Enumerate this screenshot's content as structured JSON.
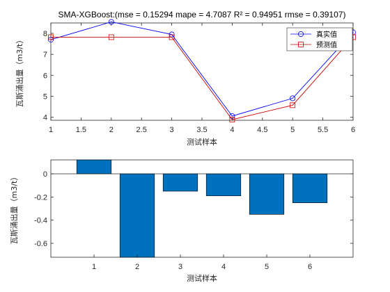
{
  "chart_data": [
    {
      "type": "line",
      "title": "SMA-XGBoost:(mse = 0.15294 mape = 4.7087  R² = 0.94951 rmse = 0.39107)",
      "xlabel": "测试样本",
      "ylabel": "瓦斯涌出量（m3/t）",
      "x": [
        1,
        2,
        3,
        4,
        5,
        6
      ],
      "xlim": [
        1,
        6
      ],
      "ylim": [
        3.85,
        8.5
      ],
      "xticks": [
        "1",
        "1.5",
        "2",
        "2.5",
        "3",
        "3.5",
        "4",
        "4.5",
        "5",
        "5.5",
        "6"
      ],
      "yticks": [
        "4",
        "5",
        "6",
        "7",
        "8"
      ],
      "grid": false,
      "legend_position": "top-right",
      "series": [
        {
          "name": "真实值",
          "values": [
            7.7,
            8.55,
            7.95,
            4.05,
            4.9,
            8.05
          ],
          "color": "#0000ff",
          "marker": "circle"
        },
        {
          "name": "预测值",
          "values": [
            7.82,
            7.82,
            7.82,
            3.88,
            4.57,
            7.82
          ],
          "color": "#cc0000",
          "marker": "square"
        }
      ]
    },
    {
      "type": "bar",
      "xlabel": "测试样本",
      "ylabel": "瓦斯涌出量（m3/t）",
      "categories": [
        "1",
        "2",
        "3",
        "4",
        "5",
        "6"
      ],
      "values": [
        0.12,
        -0.72,
        -0.15,
        -0.19,
        -0.35,
        -0.25
      ],
      "xlim": [
        0,
        7
      ],
      "ylim": [
        -0.72,
        0.12
      ],
      "yticks": [
        "-0.6",
        "-0.4",
        "-0.2",
        "0"
      ],
      "color": "#0072bd",
      "grid": false
    }
  ]
}
